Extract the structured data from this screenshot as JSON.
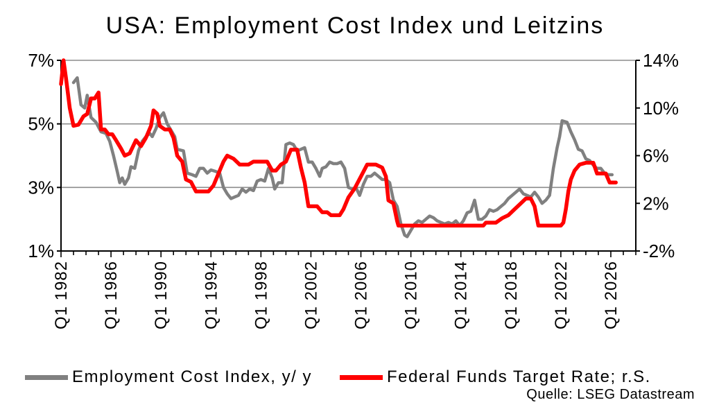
{
  "chart_data": {
    "type": "line",
    "title": "USA: Employment Cost Index und Leitzins",
    "source": "Quelle: LSEG Datastream",
    "y_left": {
      "min": 1,
      "max": 7,
      "ticks": [
        1,
        3,
        5,
        7
      ],
      "tick_labels": [
        "1%",
        "3%",
        "5%",
        "7%"
      ]
    },
    "y_right": {
      "min": -2,
      "max": 14,
      "ticks": [
        -2,
        2,
        6,
        10,
        14
      ],
      "tick_labels": [
        "-2%",
        "2%",
        "6%",
        "10%",
        "14%"
      ]
    },
    "x": {
      "min": 1982,
      "max": 2028,
      "ticks": [
        1982,
        1986,
        1990,
        1994,
        1998,
        2002,
        2006,
        2010,
        2014,
        2018,
        2022,
        2026
      ],
      "tick_labels": [
        "Q1 1982",
        "Q1 1986",
        "Q1 1990",
        "Q1 1994",
        "Q1 1998",
        "Q1 2002",
        "Q1 2006",
        "Q1 2010",
        "Q1 2014",
        "Q1 2018",
        "Q1 2022",
        "Q1 2026"
      ]
    },
    "grid": "horizontal",
    "legend_position": "bottom",
    "series": [
      {
        "name": "Employment Cost Index, y/ y",
        "axis": "left",
        "color": "#808080",
        "points": [
          [
            1983.0,
            6.3
          ],
          [
            1983.3,
            6.45
          ],
          [
            1983.6,
            5.6
          ],
          [
            1983.9,
            5.5
          ],
          [
            1984.1,
            5.9
          ],
          [
            1984.4,
            5.2
          ],
          [
            1984.8,
            5.05
          ],
          [
            1985.2,
            4.75
          ],
          [
            1985.6,
            4.7
          ],
          [
            1985.9,
            4.45
          ],
          [
            1986.2,
            4.0
          ],
          [
            1986.5,
            3.5
          ],
          [
            1986.7,
            3.15
          ],
          [
            1986.9,
            3.3
          ],
          [
            1987.1,
            3.1
          ],
          [
            1987.4,
            3.3
          ],
          [
            1987.6,
            3.65
          ],
          [
            1987.9,
            3.6
          ],
          [
            1988.2,
            4.15
          ],
          [
            1988.5,
            4.45
          ],
          [
            1988.8,
            4.6
          ],
          [
            1989.1,
            4.7
          ],
          [
            1989.3,
            4.6
          ],
          [
            1989.6,
            4.85
          ],
          [
            1989.9,
            5.2
          ],
          [
            1990.2,
            5.35
          ],
          [
            1990.5,
            5.0
          ],
          [
            1990.8,
            4.8
          ],
          [
            1991.1,
            4.6
          ],
          [
            1991.3,
            4.2
          ],
          [
            1991.8,
            4.15
          ],
          [
            1992.1,
            3.45
          ],
          [
            1992.5,
            3.4
          ],
          [
            1992.8,
            3.35
          ],
          [
            1993.1,
            3.6
          ],
          [
            1993.4,
            3.6
          ],
          [
            1993.7,
            3.45
          ],
          [
            1994.0,
            3.55
          ],
          [
            1994.4,
            3.5
          ],
          [
            1994.7,
            3.45
          ],
          [
            1995.0,
            3.0
          ],
          [
            1995.3,
            2.8
          ],
          [
            1995.6,
            2.65
          ],
          [
            1995.9,
            2.7
          ],
          [
            1996.2,
            2.75
          ],
          [
            1996.5,
            2.95
          ],
          [
            1996.8,
            2.85
          ],
          [
            1997.1,
            2.95
          ],
          [
            1997.4,
            2.9
          ],
          [
            1997.7,
            3.2
          ],
          [
            1998.0,
            3.25
          ],
          [
            1998.3,
            3.2
          ],
          [
            1998.6,
            3.6
          ],
          [
            1998.9,
            3.3
          ],
          [
            1999.1,
            2.95
          ],
          [
            1999.4,
            3.15
          ],
          [
            1999.7,
            3.15
          ],
          [
            2000.0,
            4.35
          ],
          [
            2000.3,
            4.4
          ],
          [
            2000.6,
            4.35
          ],
          [
            2000.9,
            4.15
          ],
          [
            2001.2,
            4.2
          ],
          [
            2001.5,
            4.25
          ],
          [
            2001.8,
            3.8
          ],
          [
            2002.1,
            3.8
          ],
          [
            2002.4,
            3.6
          ],
          [
            2002.7,
            3.35
          ],
          [
            2002.9,
            3.6
          ],
          [
            2003.2,
            3.65
          ],
          [
            2003.5,
            3.8
          ],
          [
            2003.8,
            3.75
          ],
          [
            2004.1,
            3.75
          ],
          [
            2004.4,
            3.8
          ],
          [
            2004.7,
            3.6
          ],
          [
            2005.0,
            3.0
          ],
          [
            2005.3,
            2.95
          ],
          [
            2005.6,
            3.0
          ],
          [
            2005.9,
            2.75
          ],
          [
            2006.2,
            3.1
          ],
          [
            2006.5,
            3.35
          ],
          [
            2006.8,
            3.35
          ],
          [
            2007.1,
            3.45
          ],
          [
            2007.4,
            3.35
          ],
          [
            2007.7,
            3.25
          ],
          [
            2008.0,
            3.25
          ],
          [
            2008.3,
            3.15
          ],
          [
            2008.6,
            2.6
          ],
          [
            2008.9,
            2.4
          ],
          [
            2009.2,
            1.85
          ],
          [
            2009.5,
            1.5
          ],
          [
            2009.7,
            1.45
          ],
          [
            2010.0,
            1.65
          ],
          [
            2010.3,
            1.85
          ],
          [
            2010.6,
            1.95
          ],
          [
            2010.9,
            1.9
          ],
          [
            2011.2,
            2.0
          ],
          [
            2011.5,
            2.1
          ],
          [
            2011.8,
            2.05
          ],
          [
            2012.1,
            1.95
          ],
          [
            2012.4,
            1.9
          ],
          [
            2012.7,
            1.85
          ],
          [
            2013.0,
            1.9
          ],
          [
            2013.3,
            1.85
          ],
          [
            2013.6,
            1.95
          ],
          [
            2013.9,
            1.8
          ],
          [
            2014.2,
            1.95
          ],
          [
            2014.5,
            2.2
          ],
          [
            2014.8,
            2.25
          ],
          [
            2015.1,
            2.6
          ],
          [
            2015.4,
            2.0
          ],
          [
            2015.7,
            2.0
          ],
          [
            2016.0,
            2.1
          ],
          [
            2016.3,
            2.3
          ],
          [
            2016.6,
            2.25
          ],
          [
            2016.9,
            2.3
          ],
          [
            2017.2,
            2.4
          ],
          [
            2017.5,
            2.5
          ],
          [
            2017.8,
            2.65
          ],
          [
            2018.1,
            2.75
          ],
          [
            2018.4,
            2.85
          ],
          [
            2018.7,
            2.95
          ],
          [
            2019.0,
            2.8
          ],
          [
            2019.3,
            2.75
          ],
          [
            2019.6,
            2.7
          ],
          [
            2019.9,
            2.85
          ],
          [
            2020.2,
            2.7
          ],
          [
            2020.5,
            2.5
          ],
          [
            2020.8,
            2.6
          ],
          [
            2021.1,
            2.75
          ],
          [
            2021.4,
            3.6
          ],
          [
            2021.7,
            4.25
          ],
          [
            2021.9,
            4.6
          ],
          [
            2022.1,
            5.1
          ],
          [
            2022.5,
            5.05
          ],
          [
            2022.8,
            4.75
          ],
          [
            2023.1,
            4.5
          ],
          [
            2023.4,
            4.2
          ],
          [
            2023.7,
            4.15
          ],
          [
            2024.0,
            3.9
          ],
          [
            2024.3,
            3.85
          ],
          [
            2024.6,
            3.7
          ],
          [
            2024.9,
            3.6
          ],
          [
            2025.2,
            3.6
          ],
          [
            2025.5,
            3.45
          ],
          [
            2025.8,
            3.4
          ],
          [
            2026.1,
            3.4
          ]
        ]
      },
      {
        "name": "Federal Funds Target Rate; r.S.",
        "axis": "right",
        "color": "#ff0000",
        "points": [
          [
            1982.0,
            12.0
          ],
          [
            1982.2,
            14.0
          ],
          [
            1982.4,
            12.5
          ],
          [
            1982.7,
            10.0
          ],
          [
            1983.0,
            8.5
          ],
          [
            1983.4,
            8.6
          ],
          [
            1983.8,
            9.3
          ],
          [
            1984.1,
            9.5
          ],
          [
            1984.4,
            10.8
          ],
          [
            1984.7,
            10.8
          ],
          [
            1985.0,
            11.3
          ],
          [
            1985.2,
            8.2
          ],
          [
            1985.5,
            8.2
          ],
          [
            1985.8,
            7.8
          ],
          [
            1986.1,
            7.8
          ],
          [
            1986.4,
            7.3
          ],
          [
            1986.8,
            6.6
          ],
          [
            1987.1,
            6.0
          ],
          [
            1987.5,
            6.2
          ],
          [
            1988.0,
            7.3
          ],
          [
            1988.4,
            6.8
          ],
          [
            1988.8,
            7.5
          ],
          [
            1989.2,
            8.5
          ],
          [
            1989.4,
            9.8
          ],
          [
            1989.7,
            9.5
          ],
          [
            1989.9,
            8.5
          ],
          [
            1990.3,
            8.2
          ],
          [
            1990.7,
            8.2
          ],
          [
            1991.0,
            7.5
          ],
          [
            1991.3,
            6.0
          ],
          [
            1991.7,
            5.5
          ],
          [
            1992.0,
            4.0
          ],
          [
            1992.4,
            3.8
          ],
          [
            1992.8,
            3.0
          ],
          [
            1993.3,
            3.0
          ],
          [
            1993.8,
            3.0
          ],
          [
            1994.2,
            3.5
          ],
          [
            1994.6,
            4.5
          ],
          [
            1995.0,
            5.5
          ],
          [
            1995.3,
            6.0
          ],
          [
            1995.8,
            5.75
          ],
          [
            1996.3,
            5.25
          ],
          [
            1997.0,
            5.25
          ],
          [
            1997.4,
            5.5
          ],
          [
            1998.0,
            5.5
          ],
          [
            1998.5,
            5.5
          ],
          [
            1998.9,
            4.75
          ],
          [
            1999.2,
            4.75
          ],
          [
            1999.6,
            5.25
          ],
          [
            2000.0,
            5.5
          ],
          [
            2000.4,
            6.5
          ],
          [
            2000.9,
            6.5
          ],
          [
            2001.2,
            5.0
          ],
          [
            2001.5,
            3.75
          ],
          [
            2001.8,
            1.75
          ],
          [
            2002.0,
            1.75
          ],
          [
            2002.5,
            1.75
          ],
          [
            2002.9,
            1.25
          ],
          [
            2003.3,
            1.25
          ],
          [
            2003.6,
            1.0
          ],
          [
            2004.3,
            1.0
          ],
          [
            2004.6,
            1.5
          ],
          [
            2005.0,
            2.5
          ],
          [
            2005.5,
            3.25
          ],
          [
            2006.0,
            4.25
          ],
          [
            2006.5,
            5.25
          ],
          [
            2007.2,
            5.25
          ],
          [
            2007.7,
            5.0
          ],
          [
            2008.0,
            4.25
          ],
          [
            2008.2,
            2.25
          ],
          [
            2008.6,
            2.0
          ],
          [
            2008.9,
            0.5
          ],
          [
            2009.0,
            0.13
          ],
          [
            2015.8,
            0.13
          ],
          [
            2016.0,
            0.38
          ],
          [
            2016.8,
            0.38
          ],
          [
            2017.3,
            0.75
          ],
          [
            2017.8,
            1.0
          ],
          [
            2018.3,
            1.5
          ],
          [
            2018.8,
            2.0
          ],
          [
            2019.2,
            2.4
          ],
          [
            2019.6,
            2.4
          ],
          [
            2019.9,
            1.75
          ],
          [
            2020.2,
            0.13
          ],
          [
            2022.0,
            0.13
          ],
          [
            2022.2,
            0.38
          ],
          [
            2022.4,
            1.5
          ],
          [
            2022.6,
            3.0
          ],
          [
            2022.8,
            4.0
          ],
          [
            2023.1,
            4.75
          ],
          [
            2023.5,
            5.25
          ],
          [
            2024.0,
            5.4
          ],
          [
            2024.6,
            5.4
          ],
          [
            2024.9,
            4.5
          ],
          [
            2025.6,
            4.5
          ],
          [
            2025.9,
            3.75
          ],
          [
            2026.4,
            3.75
          ]
        ]
      }
    ]
  }
}
